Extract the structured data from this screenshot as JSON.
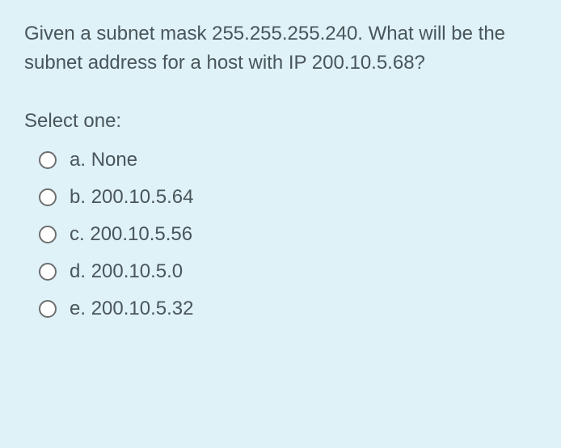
{
  "question": {
    "text": "Given a subnet mask 255.255.255.240. What will be the subnet address for a host with IP 200.10.5.68?",
    "prompt": "Select one:"
  },
  "options": [
    {
      "letter": "a.",
      "text": "None"
    },
    {
      "letter": "b.",
      "text": "200.10.5.64"
    },
    {
      "letter": "c.",
      "text": "200.10.5.56"
    },
    {
      "letter": "d.",
      "text": "200.10.5.0"
    },
    {
      "letter": "e.",
      "text": "200.10.5.32"
    }
  ],
  "colors": {
    "background": "#def2f8",
    "text": "#4a5659",
    "radio_border": "#6e6e6e"
  }
}
